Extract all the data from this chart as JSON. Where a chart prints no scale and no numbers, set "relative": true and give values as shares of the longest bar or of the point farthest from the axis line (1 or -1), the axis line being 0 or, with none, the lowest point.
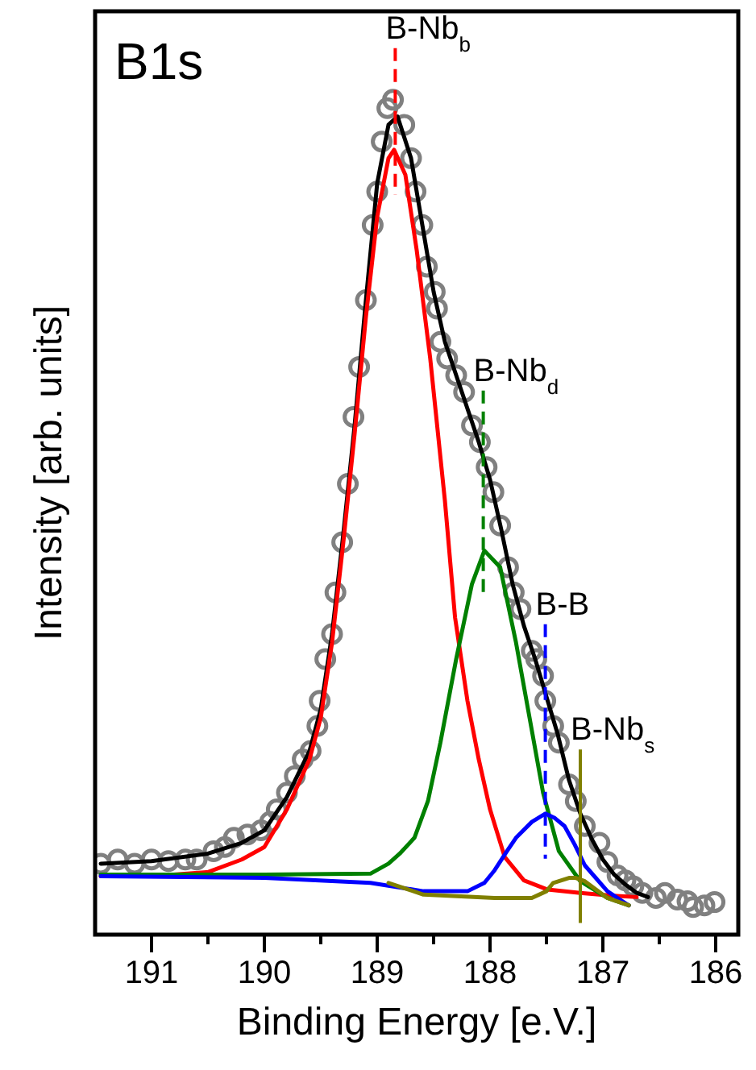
{
  "chart_data": {
    "type": "line",
    "title": "B1s",
    "xlabel": "Binding Energy [e.V.]",
    "ylabel": "Intensity [arb. units]",
    "relative": true,
    "xlim": [
      191.5,
      185.8
    ],
    "xticks": [
      191,
      {
        "value": 190.5,
        "label": null
      },
      190,
      {
        "value": 189.5,
        "label": null
      },
      189,
      {
        "value": 188.5,
        "label": null
      },
      188,
      {
        "value": 187.5,
        "label": null
      },
      187,
      {
        "value": 186.5,
        "label": null
      },
      186
    ],
    "grid": false,
    "line_style": "solid",
    "series": [
      {
        "type": "scatter",
        "marker": "circle",
        "color": "#808080",
        "x": [
          191.45,
          191.3,
          191.15,
          191.0,
          190.85,
          190.7,
          190.6,
          190.45,
          190.35,
          190.27,
          190.15,
          190.03,
          189.95,
          189.89,
          189.8,
          189.73,
          189.66,
          189.59,
          189.53,
          189.51,
          189.46,
          189.4,
          189.37,
          189.31,
          189.26,
          189.21,
          189.16,
          189.1,
          189.04,
          189.0,
          188.96,
          188.91,
          188.86,
          188.76,
          188.7,
          188.66,
          188.6,
          188.56,
          188.49,
          188.47,
          188.44,
          188.38,
          188.3,
          188.23,
          188.16,
          188.09,
          188.03,
          187.97,
          187.91,
          187.84,
          187.79,
          187.73,
          187.63,
          187.59,
          187.53,
          187.51,
          187.44,
          187.39,
          187.3,
          187.24,
          187.16,
          187.03,
          186.96,
          186.87,
          186.8,
          186.73,
          186.65,
          186.53,
          186.45,
          186.34,
          186.25,
          186.2,
          186.1,
          186.01
        ],
        "values": [
          0.085,
          0.09,
          0.085,
          0.09,
          0.088,
          0.09,
          0.09,
          0.1,
          0.105,
          0.116,
          0.12,
          0.125,
          0.135,
          0.15,
          0.17,
          0.19,
          0.21,
          0.22,
          0.25,
          0.28,
          0.33,
          0.36,
          0.41,
          0.47,
          0.54,
          0.62,
          0.68,
          0.76,
          0.85,
          0.89,
          0.95,
          0.99,
          1.0,
          0.97,
          0.93,
          0.89,
          0.85,
          0.8,
          0.77,
          0.75,
          0.71,
          0.69,
          0.67,
          0.65,
          0.61,
          0.59,
          0.56,
          0.53,
          0.49,
          0.44,
          0.41,
          0.39,
          0.34,
          0.33,
          0.31,
          0.28,
          0.25,
          0.23,
          0.18,
          0.16,
          0.13,
          0.11,
          0.087,
          0.071,
          0.065,
          0.058,
          0.05,
          0.044,
          0.05,
          0.042,
          0.04,
          0.033,
          0.035,
          0.039
        ]
      },
      {
        "color": "#000000",
        "x": [
          191.45,
          191.0,
          190.5,
          190.2,
          190.0,
          189.8,
          189.6,
          189.5,
          189.4,
          189.3,
          189.2,
          189.1,
          189.0,
          188.9,
          188.82,
          188.7,
          188.6,
          188.5,
          188.4,
          188.3,
          188.2,
          188.1,
          188.0,
          187.9,
          187.8,
          187.7,
          187.6,
          187.5,
          187.4,
          187.3,
          187.2,
          187.1,
          187.0,
          186.9,
          186.8,
          186.7,
          186.6
        ],
        "values": [
          0.085,
          0.088,
          0.097,
          0.11,
          0.125,
          0.165,
          0.22,
          0.27,
          0.36,
          0.48,
          0.61,
          0.76,
          0.9,
          0.97,
          0.98,
          0.93,
          0.85,
          0.77,
          0.71,
          0.67,
          0.63,
          0.59,
          0.545,
          0.485,
          0.42,
          0.37,
          0.33,
          0.285,
          0.24,
          0.185,
          0.145,
          0.115,
          0.09,
          0.072,
          0.06,
          0.05,
          0.045
        ]
      },
      {
        "color": "#ff0000",
        "x": [
          191.45,
          191.0,
          190.5,
          190.2,
          190.0,
          189.8,
          189.6,
          189.5,
          189.4,
          189.3,
          189.2,
          189.1,
          189.0,
          188.9,
          188.85,
          188.75,
          188.65,
          188.53,
          188.4,
          188.31,
          188.2,
          188.1,
          188.0,
          187.87,
          187.7,
          187.49,
          187.2,
          186.95,
          186.7
        ],
        "values": [
          0.07,
          0.07,
          0.075,
          0.09,
          0.105,
          0.15,
          0.21,
          0.26,
          0.35,
          0.47,
          0.6,
          0.74,
          0.86,
          0.93,
          0.94,
          0.91,
          0.82,
          0.69,
          0.52,
          0.38,
          0.28,
          0.21,
          0.15,
          0.093,
          0.065,
          0.054,
          0.05,
          0.047,
          0.045
        ]
      },
      {
        "color": "#008000",
        "x": [
          191.45,
          190.0,
          189.06,
          188.9,
          188.8,
          188.67,
          188.55,
          188.44,
          188.3,
          188.16,
          188.05,
          187.91,
          187.77,
          187.63,
          187.53,
          187.39,
          187.2,
          186.96,
          186.77
        ],
        "values": [
          0.072,
          0.072,
          0.073,
          0.085,
          0.097,
          0.116,
          0.16,
          0.23,
          0.33,
          0.42,
          0.46,
          0.44,
          0.35,
          0.245,
          0.17,
          0.1,
          0.064,
          0.044,
          0.035
        ]
      },
      {
        "color": "#0000ff",
        "x": [
          191.45,
          190.0,
          189.06,
          188.59,
          188.2,
          188.05,
          187.96,
          187.85,
          187.77,
          187.63,
          187.51,
          187.43,
          187.34,
          187.25,
          187.16,
          186.96,
          186.77
        ],
        "values": [
          0.07,
          0.068,
          0.062,
          0.052,
          0.052,
          0.062,
          0.077,
          0.1,
          0.116,
          0.135,
          0.145,
          0.14,
          0.13,
          0.108,
          0.083,
          0.052,
          0.035
        ]
      },
      {
        "color": "#808000",
        "x": [
          188.9,
          188.59,
          187.96,
          187.63,
          187.5,
          187.44,
          187.3,
          187.24,
          187.16,
          186.96,
          186.77
        ],
        "values": [
          0.062,
          0.048,
          0.044,
          0.044,
          0.052,
          0.062,
          0.068,
          0.068,
          0.064,
          0.044,
          0.035
        ]
      }
    ],
    "ref_lines": [
      {
        "axis": "x",
        "value": 188.84,
        "label": "B-Nb$_{b}$",
        "color": "#ff0000",
        "line_style": "dashed"
      },
      {
        "axis": "x",
        "value": 188.06,
        "label": "B-Nb$_{d}$",
        "color": "#008000",
        "line_style": "dashed"
      },
      {
        "axis": "x",
        "value": 187.51,
        "label": "B-B",
        "color": "#0000ff",
        "line_style": "dashed"
      },
      {
        "axis": "x",
        "value": 187.2,
        "label": "B-Nb$_{s}$",
        "color": "#808000",
        "line_style": "solid"
      }
    ]
  }
}
